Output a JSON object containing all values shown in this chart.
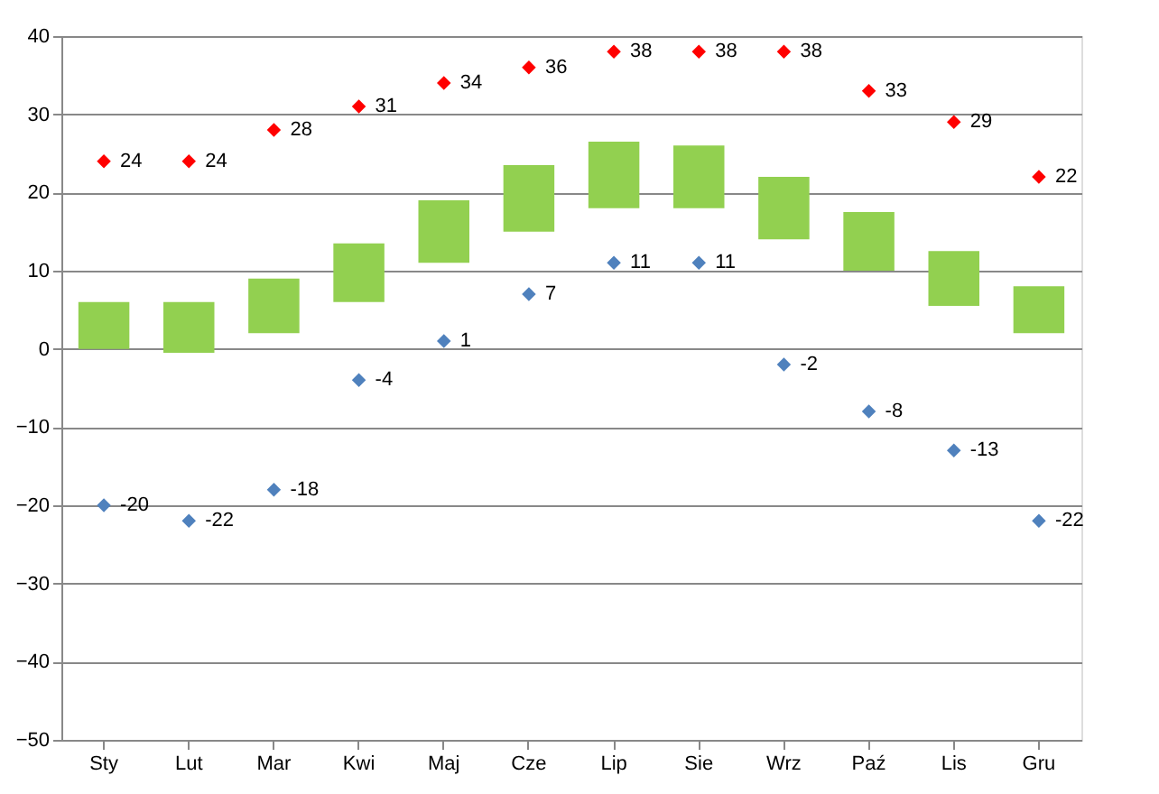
{
  "chart_data": {
    "type": "bar",
    "categories": [
      "Sty",
      "Lut",
      "Mar",
      "Kwi",
      "Maj",
      "Cze",
      "Lip",
      "Sie",
      "Wrz",
      "Paź",
      "Lis",
      "Gru"
    ],
    "series": [
      {
        "type": "bar",
        "color": "#92d050",
        "base": [
          0,
          -0.5,
          2,
          6,
          11,
          15,
          18,
          18,
          14,
          10,
          5.5,
          2
        ],
        "values": [
          6,
          6.5,
          7,
          7.5,
          8,
          8.5,
          8.5,
          8,
          8,
          7.5,
          7,
          6
        ]
      },
      {
        "type": "scatter",
        "color": "#ff0000",
        "marker": "diamond",
        "data_labels": true,
        "values": [
          24,
          24,
          28,
          31,
          34,
          36,
          38,
          38,
          38,
          33,
          29,
          22
        ]
      },
      {
        "type": "scatter",
        "color": "#4f81bd",
        "marker": "diamond",
        "data_labels": true,
        "values": [
          -20,
          -22,
          -18,
          -4,
          1,
          7,
          11,
          11,
          -2,
          -8,
          -13,
          -22
        ]
      }
    ],
    "ylim": [
      -50,
      40
    ],
    "yticks": [
      -50,
      -40,
      -30,
      -20,
      -10,
      0,
      10,
      20,
      30,
      40
    ],
    "grid": "y"
  }
}
